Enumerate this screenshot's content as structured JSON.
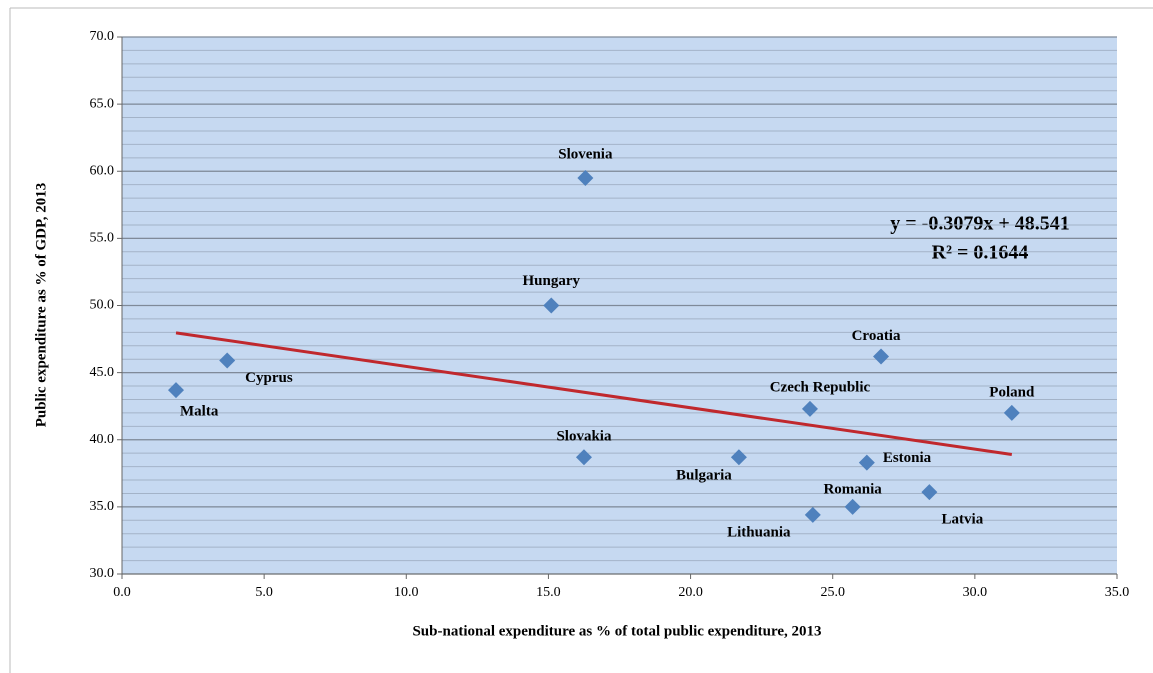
{
  "chart_data": {
    "type": "scatter",
    "xlabel": "Sub-national expenditure as % of total  public expenditure,  2013",
    "ylabel": "Public expenditure as % of GDP,  2013",
    "annotations": [
      "y = -0.3079x + 48.541",
      "R² = 0.1644"
    ],
    "color": "#4f81bd",
    "labels": [
      "Malta",
      "Cyprus",
      "Slovenia",
      "Hungary",
      "Slovakia",
      "Bulgaria",
      "Czech Republic",
      "Croatia",
      "Poland",
      "Estonia",
      "Romania",
      "Lithuania",
      "Latvia"
    ],
    "x": [
      1.9,
      3.7,
      16.3,
      15.1,
      16.25,
      21.7,
      24.2,
      26.7,
      31.3,
      26.2,
      25.7,
      24.3,
      28.4
    ],
    "y": [
      43.7,
      45.9,
      59.5,
      50.0,
      38.7,
      38.7,
      42.3,
      46.2,
      42.0,
      38.3,
      35.0,
      34.4,
      36.1
    ],
    "trendline": {
      "color": "#c0282d",
      "x": [
        1.9,
        31.3
      ],
      "y": [
        47.96,
        38.9
      ]
    },
    "xlim": [
      0,
      35
    ],
    "ylim": [
      30,
      70
    ],
    "xticks": [
      {
        "value": 0,
        "label": "0.0"
      },
      {
        "value": 5,
        "label": "5.0"
      },
      {
        "value": 10,
        "label": "10.0"
      },
      {
        "value": 15,
        "label": "15.0"
      },
      {
        "value": 20,
        "label": "20.0"
      },
      {
        "value": 25,
        "label": "25.0"
      },
      {
        "value": 30,
        "label": "30.0"
      },
      {
        "value": 35,
        "label": "35.0"
      }
    ],
    "yticks": [
      {
        "value": 30,
        "label": "30.0"
      },
      {
        "value": 35,
        "label": "35.0"
      },
      {
        "value": 40,
        "label": "40.0"
      },
      {
        "value": 45,
        "label": "45.0"
      },
      {
        "value": 50,
        "label": "50.0"
      },
      {
        "value": 55,
        "label": "55.0"
      },
      {
        "value": 60,
        "label": "60.0"
      },
      {
        "value": 65,
        "label": "65.0"
      },
      {
        "value": 70,
        "label": "70.0"
      }
    ],
    "grid": true,
    "minor_grid_step": 1,
    "plot_background": "#c6d9f1"
  }
}
